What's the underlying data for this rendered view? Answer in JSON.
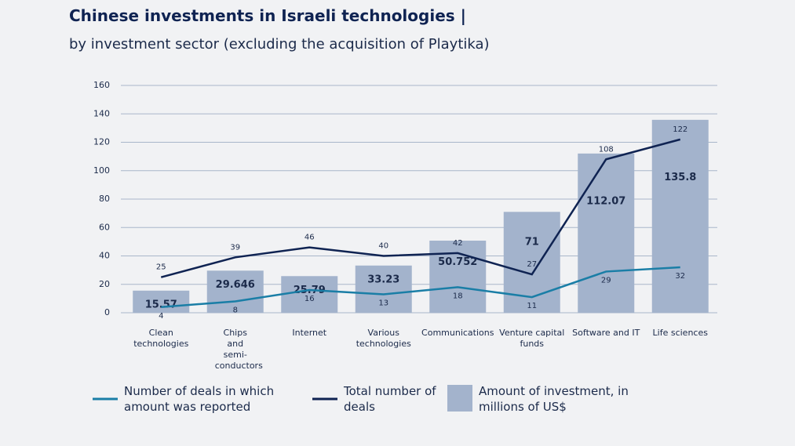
{
  "chart_data": {
    "type": "bar",
    "title": "Chinese investments in Israeli technologies |",
    "subtitle": "by investment sector (excluding the acquisition of Playtika)",
    "categories": [
      "Clean technologies",
      "Chips and semi-conductors",
      "Internet",
      "Various technologies",
      "Communications",
      "Venture capital funds",
      "Software and IT",
      "Life sciences"
    ],
    "series": [
      {
        "name": "Number of deals in which amount was reported",
        "type": "line",
        "color": "#1a7ea6",
        "values": [
          4,
          8,
          16,
          13,
          18,
          11,
          29,
          32
        ]
      },
      {
        "name": "Total number of deals",
        "type": "line",
        "color": "#0f2352",
        "values": [
          25,
          39,
          46,
          40,
          42,
          27,
          108,
          122
        ]
      },
      {
        "name": "Amount of investment, in millions of US$",
        "type": "bar",
        "color": "#a3b3cc",
        "values": [
          15.57,
          29.646,
          25.79,
          33.23,
          50.752,
          71,
          112.07,
          135.8
        ]
      }
    ],
    "ylim": [
      0,
      160
    ],
    "yticks": [
      0,
      20,
      40,
      60,
      80,
      100,
      120,
      140,
      160
    ],
    "grid": true
  }
}
